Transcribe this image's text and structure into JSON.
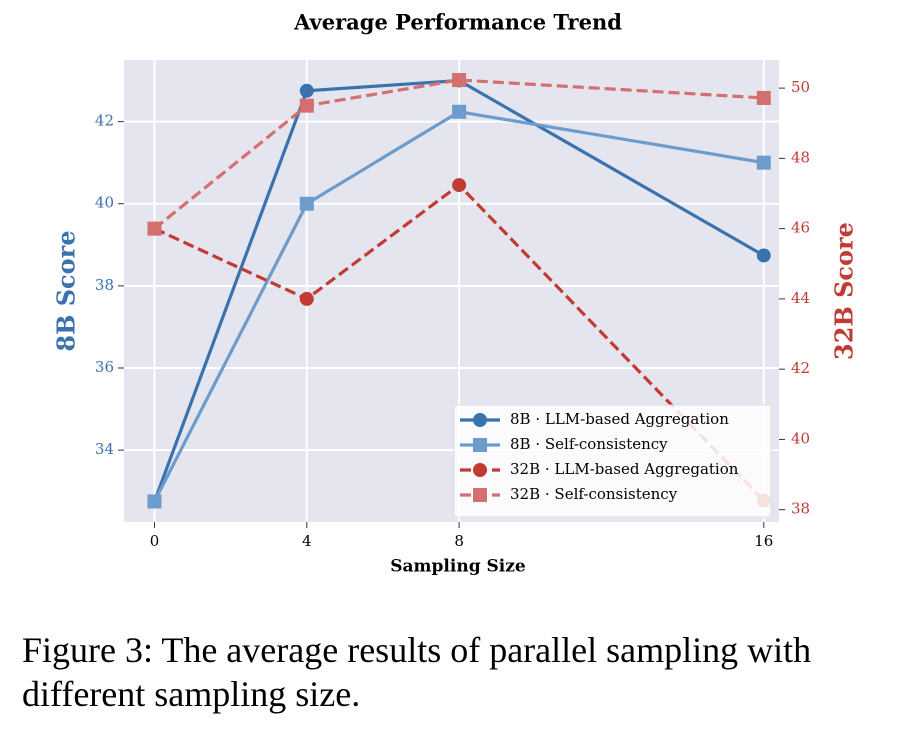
{
  "chart_data": {
    "type": "line",
    "title": "Average Performance Trend",
    "x_label": "Sampling Size",
    "y_label": "8B Score",
    "y2_label": "32B Score",
    "x": [
      0,
      4,
      8,
      16
    ],
    "xlim": [
      -0.8,
      16.4
    ],
    "xticks": [
      0,
      4,
      8,
      16
    ],
    "ylim": [
      32.25,
      43.5
    ],
    "yticks": [
      34,
      36,
      38,
      40,
      42
    ],
    "y2lim": [
      37.65,
      50.8
    ],
    "y2ticks": [
      38,
      40,
      42,
      44,
      46,
      48,
      50
    ],
    "grid": true,
    "legend_position": "lower right",
    "series": [
      {
        "name": "8B · LLM-based Aggregation",
        "color": "#3a72ad",
        "linestyle": "solid",
        "marker": "circle",
        "axis": "y",
        "values": [
          32.75,
          42.75,
          43.0,
          38.74
        ]
      },
      {
        "name": "8B · Self-consistency",
        "color": "#6b9ccb",
        "linestyle": "solid",
        "marker": "square",
        "axis": "y",
        "values": [
          32.75,
          40.0,
          42.24,
          41.0
        ]
      },
      {
        "name": "32B · LLM-based Aggregation",
        "color": "#c23b33",
        "linestyle": "dashed",
        "marker": "circle",
        "axis": "y2",
        "values": [
          46.0,
          44.0,
          47.24,
          38.26
        ]
      },
      {
        "name": "32B · Self-consistency",
        "color": "#d46f6f",
        "linestyle": "dashed",
        "marker": "square",
        "axis": "y2",
        "values": [
          46.0,
          49.5,
          50.23,
          49.72
        ]
      }
    ]
  },
  "caption": "Figure 3: The average results of parallel sampling with different sampling size."
}
